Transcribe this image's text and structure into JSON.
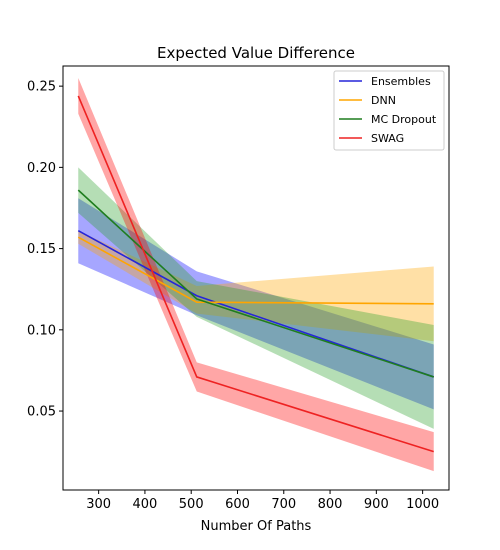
{
  "chart_data": {
    "type": "line",
    "title": "Expected Value Difference",
    "xlabel": "Number Of Paths",
    "ylabel": "",
    "xlim": [
      223,
      1057
    ],
    "ylim": [
      0.0014,
      0.2624
    ],
    "x": [
      256,
      512,
      1024
    ],
    "xticks": [
      300,
      400,
      500,
      600,
      700,
      800,
      900,
      1000
    ],
    "yticks": [
      0.05,
      0.1,
      0.15,
      0.2,
      0.25
    ],
    "ytick_labels": [
      "0.05",
      "0.10",
      "0.15",
      "0.20",
      "0.25"
    ],
    "grid": false,
    "legend_position": "top-right",
    "series": [
      {
        "name": "Ensembles",
        "color": "#2525d9",
        "band_color": "#0000ff",
        "values": [
          0.161,
          0.121,
          0.071
        ],
        "lower": [
          0.141,
          0.109,
          0.051
        ],
        "upper": [
          0.181,
          0.136,
          0.091
        ]
      },
      {
        "name": "DNN",
        "color": "#ffa500",
        "band_color": "#ffa500",
        "values": [
          0.157,
          0.117,
          0.116
        ],
        "lower": [
          0.153,
          0.11,
          0.093
        ],
        "upper": [
          0.161,
          0.127,
          0.139
        ]
      },
      {
        "name": "MC Dropout",
        "color": "#1e7d1e",
        "band_color": "#2ca02c",
        "values": [
          0.186,
          0.119,
          0.071
        ],
        "lower": [
          0.172,
          0.108,
          0.039
        ],
        "upper": [
          0.2,
          0.13,
          0.103
        ]
      },
      {
        "name": "SWAG",
        "color": "#ee2222",
        "band_color": "#ff0000",
        "values": [
          0.244,
          0.071,
          0.025
        ],
        "lower": [
          0.233,
          0.062,
          0.013
        ],
        "upper": [
          0.255,
          0.08,
          0.037
        ]
      }
    ]
  }
}
